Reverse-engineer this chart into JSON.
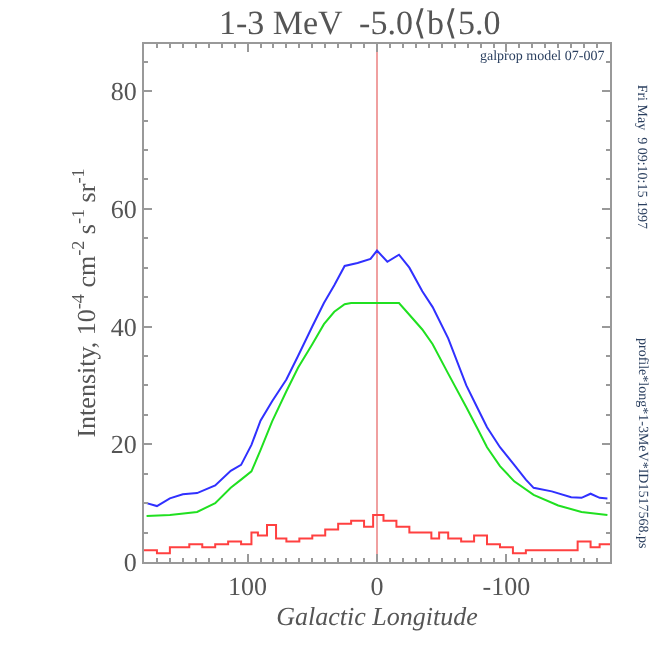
{
  "chart_data": {
    "type": "line",
    "title": "1-3 MeV  -5.0⟨b⟨5.0",
    "xlabel": "Galactic Longitude",
    "ylabel": "Intensity, 10$^{-4}$ cm$^{-2}$ s$^{-1}$ sr$^{-1}$",
    "xlim": [
      180,
      -180
    ],
    "ylim": [
      0,
      88
    ],
    "xticks": [
      100,
      0,
      -100
    ],
    "yticks": [
      0,
      20,
      40,
      60,
      80
    ],
    "grid": false,
    "legend": false,
    "ref_lines": [
      {
        "axis": "x",
        "value": 0,
        "color": "#f0a0a0"
      }
    ],
    "annotations": [
      "galprop model 07-007",
      "Fri May  9 09:10:15 1997",
      "profile*long*1-3MeV*ID1517568.ps"
    ],
    "series": [
      {
        "color": "#3030ff",
        "x": [
          178,
          170,
          160,
          150,
          139,
          125,
          113,
          105,
          97,
          90,
          81,
          70,
          61,
          50,
          41,
          33,
          25,
          15,
          5,
          0,
          -8,
          -17,
          -25,
          -35,
          -43,
          -55,
          -69,
          -78,
          -85,
          -95,
          -106,
          -115,
          -121,
          -135,
          -150,
          -158,
          -165,
          -172,
          -178
        ],
        "values": [
          10,
          9.5,
          10.8,
          11.5,
          11.7,
          13,
          15.5,
          16.5,
          19.9,
          24,
          27.3,
          31,
          35,
          40,
          44,
          47,
          50.3,
          50.8,
          51.5,
          52.9,
          51,
          52.2,
          50,
          46,
          43.3,
          38,
          30,
          26,
          22.9,
          19.5,
          16.5,
          14,
          12.6,
          12,
          11,
          10.9,
          11.6,
          10.9,
          10.8
        ]
      },
      {
        "color": "#20e020",
        "x": [
          178,
          160,
          139,
          125,
          113,
          105,
          97,
          90,
          81,
          70,
          61,
          50,
          41,
          33,
          25,
          20,
          0,
          -17,
          -25,
          -35,
          -43,
          -55,
          -69,
          -78,
          -85,
          -95,
          -106,
          -121,
          -140,
          -158,
          -178
        ],
        "values": [
          7.8,
          8,
          8.5,
          10,
          12.6,
          14,
          15.4,
          19,
          23.9,
          29,
          33,
          37,
          40.4,
          42.5,
          43.8,
          44,
          44,
          44,
          42,
          39.5,
          37,
          32,
          26.3,
          22.5,
          19.5,
          16.3,
          13.7,
          11.4,
          9.6,
          8.5,
          8
        ]
      },
      {
        "color": "#ff4040",
        "type": "step",
        "x": [
          180,
          170,
          160,
          145,
          135,
          125,
          115,
          105,
          97,
          92,
          85,
          78,
          70,
          60,
          50,
          40,
          30,
          20,
          10,
          3,
          -5,
          -15,
          -25,
          -35,
          -42,
          -48,
          -55,
          -65,
          -75,
          -85,
          -95,
          -105,
          -115,
          -125,
          -135,
          -145,
          -155,
          -165,
          -172,
          -180
        ],
        "values": [
          2,
          1.5,
          2.5,
          3,
          2.5,
          3,
          3.5,
          3,
          5,
          4.5,
          6.3,
          4,
          3.5,
          4,
          4.5,
          5.5,
          6.5,
          7,
          6,
          8,
          7,
          6,
          5,
          5,
          4,
          5,
          4,
          3.5,
          4.5,
          3,
          2.5,
          1.5,
          2,
          2,
          2,
          2,
          3.5,
          2.5,
          3,
          3
        ]
      }
    ]
  }
}
